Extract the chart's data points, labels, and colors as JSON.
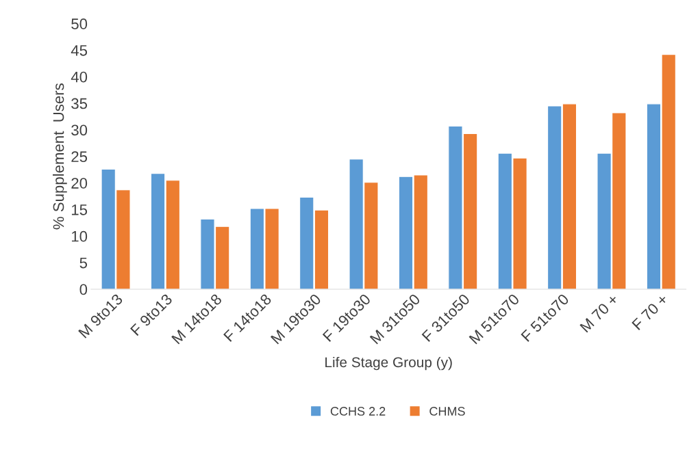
{
  "chart_data": {
    "type": "bar",
    "xlabel": "Life Stage Group (y)",
    "ylabel": "% Supplement  Users",
    "categories": [
      "M 9to13",
      "F 9to13",
      "M 14to18",
      "F 14to18",
      "M 19to30",
      "F 19to30",
      "M 31to50",
      "F 31to50",
      "M 51to70",
      "F 51to70",
      "M 70 +",
      "F 70 +"
    ],
    "series": [
      {
        "name": "CCHS 2.2",
        "color": "#5b9bd5",
        "values": [
          22.6,
          21.8,
          13.2,
          15.2,
          17.3,
          24.5,
          21.2,
          30.7,
          25.6,
          34.5,
          25.6,
          34.9
        ]
      },
      {
        "name": "CHMS",
        "color": "#ed7d31",
        "values": [
          18.7,
          20.5,
          11.8,
          15.2,
          14.9,
          20.1,
          21.5,
          29.3,
          24.7,
          34.9,
          33.2,
          44.2
        ]
      }
    ],
    "ylim": [
      0,
      50
    ],
    "yticks": [
      0,
      5,
      10,
      15,
      20,
      25,
      30,
      35,
      40,
      45,
      50
    ],
    "grid": false,
    "legend": "bottom"
  }
}
